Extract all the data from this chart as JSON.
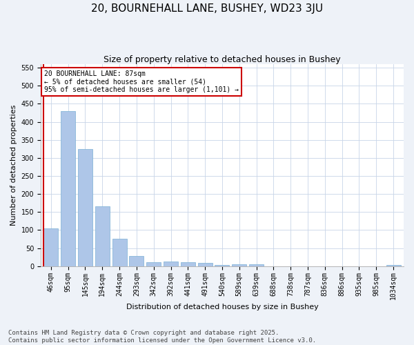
{
  "title1": "20, BOURNEHALL LANE, BUSHEY, WD23 3JU",
  "title2": "Size of property relative to detached houses in Bushey",
  "xlabel": "Distribution of detached houses by size in Bushey",
  "ylabel": "Number of detached properties",
  "categories": [
    "46sqm",
    "95sqm",
    "145sqm",
    "194sqm",
    "244sqm",
    "293sqm",
    "342sqm",
    "392sqm",
    "441sqm",
    "491sqm",
    "540sqm",
    "589sqm",
    "639sqm",
    "688sqm",
    "738sqm",
    "787sqm",
    "836sqm",
    "886sqm",
    "935sqm",
    "985sqm",
    "1034sqm"
  ],
  "values": [
    105,
    430,
    325,
    165,
    75,
    28,
    10,
    12,
    10,
    8,
    4,
    5,
    5,
    0,
    0,
    0,
    0,
    0,
    0,
    0,
    3
  ],
  "bar_color": "#aec6e8",
  "bar_edge_color": "#7aafd4",
  "highlight_color": "#cc0000",
  "annotation_text": "20 BOURNEHALL LANE: 87sqm\n← 5% of detached houses are smaller (54)\n95% of semi-detached houses are larger (1,101) →",
  "annotation_box_color": "#cc0000",
  "ylim": [
    0,
    560
  ],
  "yticks": [
    0,
    50,
    100,
    150,
    200,
    250,
    300,
    350,
    400,
    450,
    500,
    550
  ],
  "footer": "Contains HM Land Registry data © Crown copyright and database right 2025.\nContains public sector information licensed under the Open Government Licence v3.0.",
  "bg_color": "#eef2f8",
  "plot_bg_color": "#ffffff",
  "grid_color": "#c8d4e8",
  "title_fontsize": 11,
  "subtitle_fontsize": 9,
  "axis_label_fontsize": 8,
  "tick_fontsize": 7,
  "footer_fontsize": 6.5,
  "annotation_fontsize": 7
}
